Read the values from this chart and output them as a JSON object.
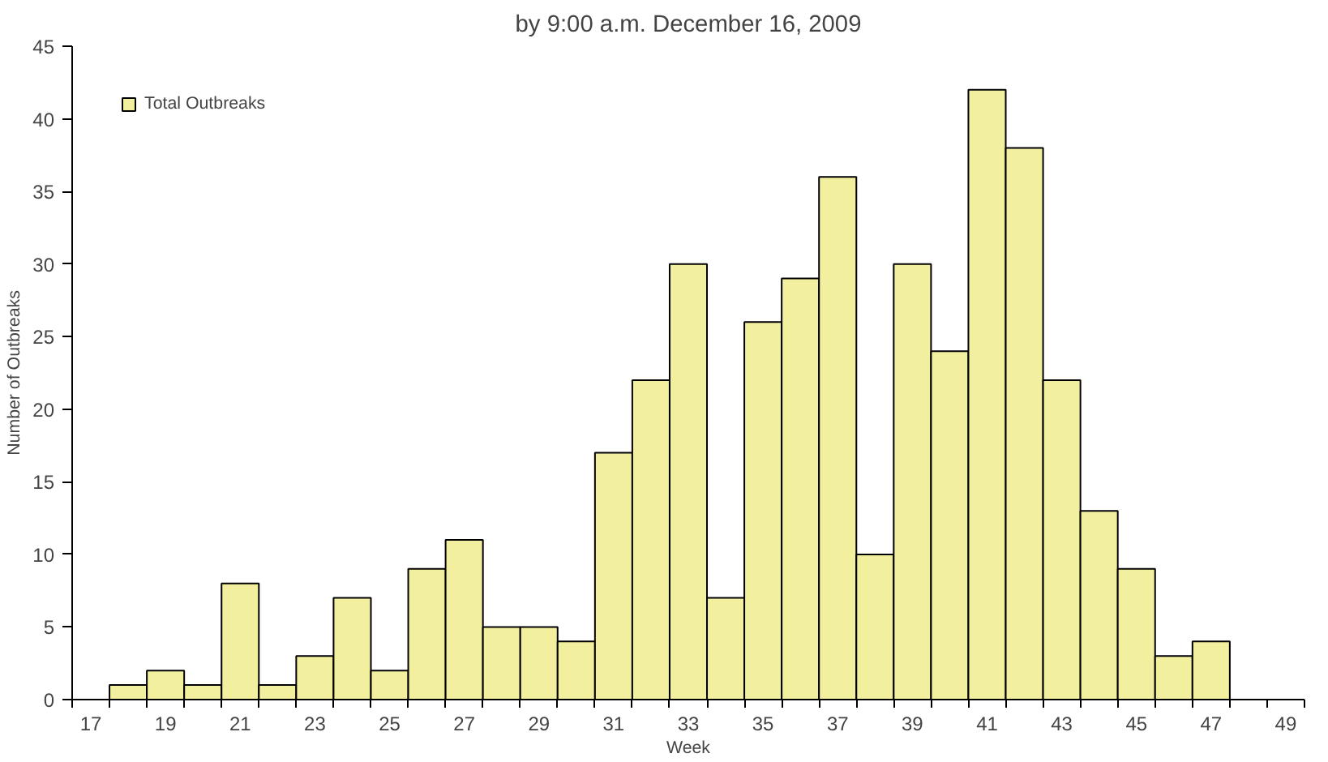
{
  "chart_data": {
    "type": "bar",
    "title": "by 9:00 a.m. December 16, 2009",
    "xlabel": "Week",
    "ylabel": "Number of Outbreaks",
    "categories": [
      "17",
      null,
      "19",
      null,
      "21",
      null,
      "23",
      null,
      "25",
      null,
      "27",
      null,
      "29",
      null,
      "31",
      null,
      "33",
      null,
      "35",
      null,
      "37",
      null,
      "39",
      null,
      "41",
      null,
      "43",
      null,
      "45",
      null,
      "47",
      null,
      "49"
    ],
    "series": [
      {
        "name": "Total Outbreaks",
        "color": "#f2f09e",
        "values": [
          null,
          1,
          2,
          1,
          8,
          1,
          3,
          7,
          2,
          9,
          11,
          5,
          5,
          4,
          17,
          22,
          30,
          7,
          26,
          29,
          36,
          10,
          30,
          24,
          42,
          38,
          22,
          13,
          9,
          3,
          4,
          null,
          null
        ]
      }
    ],
    "ylim": [
      0,
      45
    ],
    "yticks": [
      0,
      5,
      10,
      15,
      20,
      25,
      30,
      35,
      40,
      45
    ],
    "grid": false,
    "legend": "top left"
  }
}
